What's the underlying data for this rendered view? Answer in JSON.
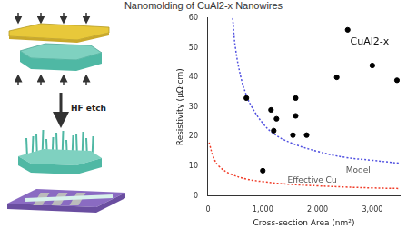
{
  "title": "Nanomolding of CuAl2-x Nanowires",
  "diagram": {
    "step_label": "HF etch"
  },
  "chart_data": {
    "type": "scatter",
    "x_label": "Cross-section Area (nm²)",
    "y_label": "Resistivity (μΩ·cm)",
    "xlim": [
      0,
      3500
    ],
    "xticks": [
      0,
      1000,
      2000,
      3000
    ],
    "ylim": [
      0,
      60
    ],
    "yticks": [
      0,
      10,
      20,
      30,
      40,
      50,
      60
    ],
    "grid": false,
    "series": [
      {
        "name": "CuAl2-x",
        "type": "scatter",
        "marker": "circle",
        "color": "#000000",
        "x": [
          700,
          1000,
          1150,
          1200,
          1250,
          1550,
          1600,
          1600,
          1800,
          2350,
          2550,
          3000,
          3450
        ],
        "values": [
          33,
          8.5,
          29,
          22,
          26,
          20.5,
          33,
          27,
          20.5,
          40,
          56,
          44,
          39
        ]
      },
      {
        "name": "Model",
        "type": "line",
        "line_style": "dotted",
        "color": "#5050e0",
        "x": [
          450,
          500,
          600,
          700,
          800,
          1000,
          1200,
          1500,
          2000,
          2500,
          3000,
          3500
        ],
        "values": [
          60,
          50,
          40,
          34,
          30,
          24.5,
          21,
          18,
          15,
          13,
          12,
          11
        ]
      },
      {
        "name": "Effective Cu",
        "type": "line",
        "line_style": "dotted",
        "color": "#f03c28",
        "x": [
          20,
          100,
          200,
          400,
          700,
          1000,
          1500,
          2000,
          2500,
          3000,
          3500
        ],
        "values": [
          18,
          13,
          10,
          7.5,
          5.7,
          4.8,
          3.9,
          3.4,
          3.0,
          2.7,
          2.5
        ]
      }
    ]
  }
}
